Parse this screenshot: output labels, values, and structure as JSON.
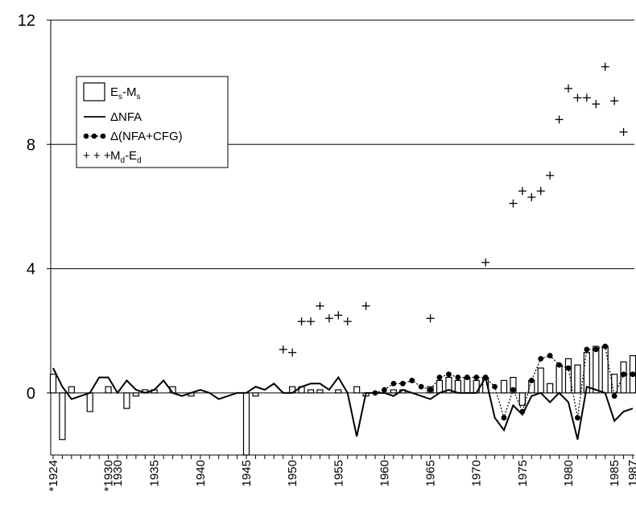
{
  "chart_data": {
    "type": "bar",
    "title": "",
    "xlabel": "",
    "ylabel": "",
    "ylim": [
      -2,
      12
    ],
    "yticks": [
      "0",
      "4",
      "8",
      "12"
    ],
    "grid": "horizontal",
    "legend_position": "top-left",
    "xtick_labels": [
      "*1924",
      "*1930",
      "1930",
      "1935",
      "1940",
      "1945",
      "1950",
      "1955",
      "1960",
      "1965",
      "1970",
      "1975",
      "1980",
      "1985",
      "1987"
    ],
    "categories": [
      1924,
      1925,
      1926,
      1927,
      1928,
      1929,
      1930,
      1931,
      1932,
      1933,
      1934,
      1935,
      1936,
      1937,
      1938,
      1939,
      1940,
      1941,
      1942,
      1943,
      1944,
      1945,
      1946,
      1947,
      1948,
      1949,
      1950,
      1951,
      1952,
      1953,
      1954,
      1955,
      1956,
      1957,
      1958,
      1959,
      1960,
      1961,
      1962,
      1963,
      1964,
      1965,
      1966,
      1967,
      1968,
      1969,
      1970,
      1971,
      1972,
      1973,
      1974,
      1975,
      1976,
      1977,
      1978,
      1979,
      1980,
      1981,
      1982,
      1983,
      1984,
      1985,
      1986,
      1987
    ],
    "series": [
      {
        "name": "Es-Ms",
        "legend_main": "E",
        "legend_sub1": "s",
        "legend_mid": "-M",
        "legend_sub2": "s",
        "type": "bar",
        "values": [
          0.6,
          -1.5,
          0.2,
          0.0,
          -0.6,
          0.0,
          0.2,
          0.0,
          -0.5,
          -0.1,
          0.1,
          0.1,
          0.0,
          0.2,
          0.0,
          -0.1,
          0.0,
          0.0,
          0.0,
          0.0,
          0.0,
          -2.0,
          -0.1,
          0.0,
          0.0,
          0.0,
          0.2,
          0.2,
          0.1,
          0.1,
          0.0,
          0.1,
          0.0,
          0.2,
          -0.1,
          0.0,
          0.0,
          0.1,
          0.1,
          0.0,
          0.0,
          0.2,
          0.4,
          0.5,
          0.4,
          0.5,
          0.4,
          0.5,
          0.0,
          0.4,
          0.5,
          -0.4,
          0.4,
          0.8,
          0.3,
          0.9,
          1.1,
          0.9,
          1.3,
          1.5,
          1.5,
          0.6,
          1.0,
          1.2
        ]
      },
      {
        "name": "ΔNFA",
        "type": "line",
        "values": [
          0.8,
          0.2,
          -0.2,
          -0.1,
          0.0,
          0.5,
          0.5,
          0.0,
          0.4,
          0.1,
          0.0,
          0.1,
          0.4,
          0.0,
          -0.1,
          0.0,
          0.1,
          0.0,
          -0.2,
          -0.1,
          0.0,
          0.0,
          0.2,
          0.1,
          0.3,
          0.0,
          0.0,
          0.2,
          0.3,
          0.3,
          0.1,
          0.5,
          0.0,
          -1.4,
          0.0,
          0.0,
          0.0,
          -0.1,
          0.1,
          0.0,
          -0.1,
          -0.2,
          0.0,
          0.1,
          0.0,
          0.0,
          0.0,
          0.5,
          -0.8,
          -1.2,
          -0.4,
          -0.7,
          -0.1,
          0.0,
          -0.3,
          0.0,
          -0.3,
          -1.5,
          0.2,
          0.1,
          0.0,
          -0.9,
          -0.6,
          -0.5
        ]
      },
      {
        "name": "Δ(NFA+CFG)",
        "type": "dotted-line",
        "x": [
          1959,
          1960,
          1961,
          1962,
          1963,
          1964,
          1965,
          1966,
          1967,
          1968,
          1969,
          1970,
          1971,
          1972,
          1973,
          1974,
          1975,
          1976,
          1977,
          1978,
          1979,
          1980,
          1981,
          1982,
          1983,
          1984,
          1985,
          1986,
          1987
        ],
        "values": [
          0.0,
          0.1,
          0.3,
          0.3,
          0.4,
          0.2,
          0.1,
          0.5,
          0.6,
          0.5,
          0.5,
          0.5,
          0.5,
          0.2,
          -0.8,
          0.1,
          -0.6,
          0.4,
          1.1,
          1.2,
          0.9,
          0.8,
          -0.8,
          1.4,
          1.4,
          1.5,
          -0.1,
          0.6,
          0.6
        ]
      },
      {
        "name": "Md-Ed",
        "legend_main": "M",
        "legend_sub1": "d",
        "legend_mid": "-E",
        "legend_sub2": "d",
        "type": "scatter",
        "x": [
          1949,
          1950,
          1951,
          1952,
          1953,
          1954,
          1955,
          1956,
          1958,
          1965,
          1971,
          1974,
          1975,
          1976,
          1977,
          1978,
          1979,
          1980,
          1981,
          1982,
          1983,
          1984,
          1985,
          1986
        ],
        "values": [
          1.4,
          1.3,
          2.3,
          2.3,
          2.8,
          2.4,
          2.5,
          2.3,
          2.8,
          2.4,
          4.2,
          6.1,
          6.5,
          6.3,
          6.5,
          7.0,
          8.8,
          9.8,
          9.5,
          9.5,
          9.3,
          10.5,
          9.4,
          8.4
        ]
      }
    ]
  }
}
